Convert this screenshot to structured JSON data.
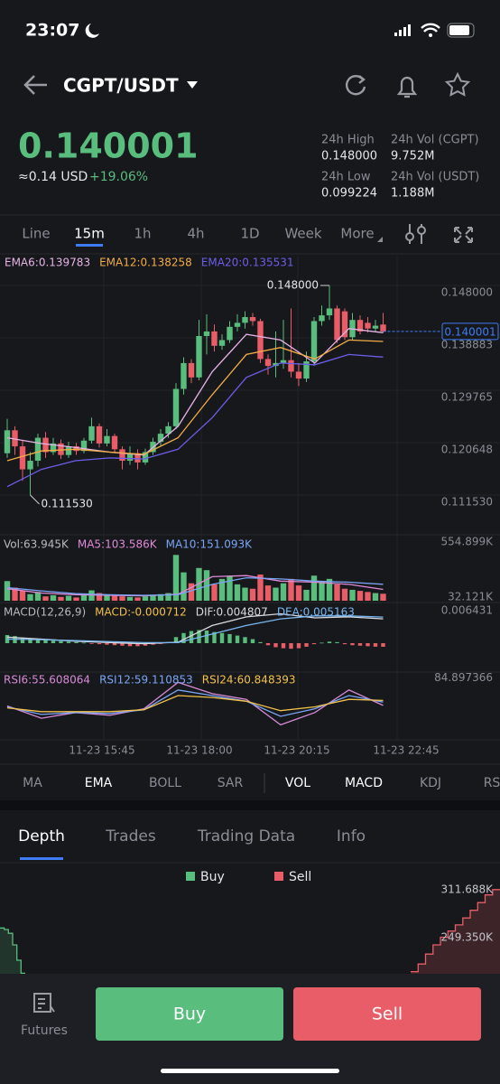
{
  "status_bar": {
    "time": "23:07"
  },
  "header": {
    "pair": "CGPT/USDT"
  },
  "ticker": {
    "last": "0.140001",
    "usd": "≈0.14 USD",
    "change": "+19.06%",
    "stats": [
      {
        "label": "24h High",
        "value": "0.148000"
      },
      {
        "label": "24h Vol (CGPT)",
        "value": "9.752M"
      },
      {
        "label": "24h Low",
        "value": "0.099224"
      },
      {
        "label": "24h Vol (USDT)",
        "value": "1.188M"
      }
    ]
  },
  "timeframes": {
    "items": [
      "Line",
      "15m",
      "1h",
      "4h",
      "1D",
      "Week",
      "More"
    ],
    "active": 1
  },
  "chart_data": [
    {
      "type": "candlestick",
      "up_color": "#58bd7d",
      "down_color": "#e85d68",
      "ylim": [
        0.10493,
        0.15319
      ],
      "yticks": [
        {
          "value": 0.148,
          "label": "0.148000"
        },
        0.138883,
        0.129765,
        0.120648,
        {
          "value": 0.11153,
          "label": "0.111530"
        }
      ],
      "last_price": {
        "value": 0.140001,
        "label": "0.140001"
      },
      "max_label": "0.148000",
      "min_label": "0.111530",
      "candles": [
        [
          0.1188,
          0.1248,
          0.118,
          0.1228
        ],
        [
          0.1228,
          0.1235,
          0.1185,
          0.12
        ],
        [
          0.12,
          0.121,
          0.114,
          0.116
        ],
        [
          0.116,
          0.119,
          0.11153,
          0.1175
        ],
        [
          0.1175,
          0.1222,
          0.1165,
          0.1215
        ],
        [
          0.1215,
          0.1225,
          0.118,
          0.119
        ],
        [
          0.119,
          0.1215,
          0.1185,
          0.1205
        ],
        [
          0.1205,
          0.1212,
          0.1178,
          0.1185
        ],
        [
          0.1185,
          0.1208,
          0.118,
          0.12
        ],
        [
          0.12,
          0.1206,
          0.1185,
          0.1192
        ],
        [
          0.1192,
          0.1215,
          0.1188,
          0.121
        ],
        [
          0.121,
          0.125,
          0.1205,
          0.1235
        ],
        [
          0.1235,
          0.124,
          0.1198,
          0.1205
        ],
        [
          0.1205,
          0.123,
          0.12,
          0.1218
        ],
        [
          0.1218,
          0.1222,
          0.1188,
          0.1195
        ],
        [
          0.1195,
          0.12,
          0.116,
          0.1175
        ],
        [
          0.1175,
          0.12,
          0.1168,
          0.1188
        ],
        [
          0.1188,
          0.1195,
          0.116,
          0.1172
        ],
        [
          0.1172,
          0.1196,
          0.1168,
          0.119
        ],
        [
          0.119,
          0.1215,
          0.1185,
          0.1208
        ],
        [
          0.1208,
          0.123,
          0.12,
          0.1222
        ],
        [
          0.1222,
          0.1242,
          0.1215,
          0.1235
        ],
        [
          0.1235,
          0.131,
          0.123,
          0.13
        ],
        [
          0.13,
          0.1355,
          0.129,
          0.1345
        ],
        [
          0.1345,
          0.1352,
          0.131,
          0.132
        ],
        [
          0.132,
          0.142,
          0.1315,
          0.1392
        ],
        [
          0.1392,
          0.143,
          0.136,
          0.14
        ],
        [
          0.14,
          0.1412,
          0.1365,
          0.1375
        ],
        [
          0.1375,
          0.1395,
          0.1368,
          0.1385
        ],
        [
          0.1385,
          0.1418,
          0.138,
          0.1408
        ],
        [
          0.1408,
          0.143,
          0.14,
          0.1415
        ],
        [
          0.1415,
          0.1435,
          0.1405,
          0.1425
        ],
        [
          0.1425,
          0.1432,
          0.141,
          0.1418
        ],
        [
          0.1418,
          0.1422,
          0.1345,
          0.1352
        ],
        [
          0.1352,
          0.136,
          0.1325,
          0.134
        ],
        [
          0.134,
          0.14,
          0.132,
          0.1345
        ],
        [
          0.1345,
          0.142,
          0.1335,
          0.135
        ],
        [
          0.135,
          0.144,
          0.132,
          0.133
        ],
        [
          0.133,
          0.1345,
          0.1305,
          0.1318
        ],
        [
          0.1318,
          0.1365,
          0.1312,
          0.1348
        ],
        [
          0.1348,
          0.1425,
          0.134,
          0.1418
        ],
        [
          0.1418,
          0.1445,
          0.141,
          0.1428
        ],
        [
          0.1428,
          0.148,
          0.142,
          0.144
        ],
        [
          0.144,
          0.1445,
          0.138,
          0.1385
        ],
        [
          0.1435,
          0.144,
          0.1385,
          0.139
        ],
        [
          0.139,
          0.1432,
          0.1385,
          0.142
        ],
        [
          0.142,
          0.1428,
          0.1395,
          0.14
        ],
        [
          0.1415,
          0.1425,
          0.1398,
          0.1405
        ],
        [
          0.1405,
          0.142,
          0.14,
          0.141
        ],
        [
          0.1412,
          0.1432,
          0.1398,
          0.140001
        ]
      ],
      "series": [
        {
          "name": "EMA6:0.139783",
          "color": "#e7b3e6",
          "values": [
            0.1215,
            0.1205,
            0.1198,
            0.119,
            0.1185,
            0.1235,
            0.133,
            0.1395,
            0.1385,
            0.1345,
            0.1405,
            0.139783
          ]
        },
        {
          "name": "EMA12:0.138258",
          "color": "#f2ad47",
          "values": [
            0.1175,
            0.1192,
            0.1195,
            0.119,
            0.1186,
            0.1215,
            0.129,
            0.136,
            0.1372,
            0.1352,
            0.1385,
            0.138258
          ]
        },
        {
          "name": "EMA20:0.135531",
          "color": "#6b5ee8",
          "values": [
            0.113,
            0.116,
            0.1175,
            0.118,
            0.1178,
            0.1195,
            0.125,
            0.132,
            0.1345,
            0.1342,
            0.136,
            0.135531
          ]
        }
      ]
    },
    {
      "type": "volume",
      "title": "Vol:63.945K",
      "ylim": [
        0,
        554.899
      ],
      "yticks": [
        {
          "value": 554.899,
          "label": "554.899K"
        },
        {
          "value": 32.121,
          "label": "32.121K"
        }
      ],
      "values": [
        180,
        120,
        90,
        60,
        80,
        40,
        50,
        35,
        45,
        30,
        55,
        95,
        70,
        50,
        45,
        40,
        35,
        30,
        40,
        55,
        60,
        70,
        420,
        260,
        160,
        300,
        280,
        150,
        200,
        230,
        150,
        120,
        110,
        240,
        140,
        120,
        160,
        200,
        140,
        100,
        230,
        180,
        200,
        150,
        110,
        100,
        90,
        80,
        70,
        63.945
      ],
      "series": [
        {
          "name": "MA5:103.586K",
          "color": "#e08ad8",
          "values": [
            110,
            70,
            55,
            50,
            45,
            60,
            220,
            230,
            180,
            170,
            150,
            103.586
          ]
        },
        {
          "name": "MA10:151.093K",
          "color": "#7aa5f5",
          "values": [
            120,
            90,
            65,
            55,
            50,
            55,
            150,
            210,
            200,
            180,
            170,
            151.093
          ]
        }
      ]
    },
    {
      "type": "macd",
      "title": "MACD(12,26,9)",
      "value_title": "MACD:-0.000712",
      "ylim": [
        -0.00536,
        0.0075
      ],
      "yticks": [
        0.006431
      ],
      "values": [
        0.0016,
        0.0014,
        0.0011,
        0.0009,
        0.0008,
        0.0006,
        0.0005,
        0.0004,
        0.0003,
        0.0002,
        0.0001,
        -0.0001,
        -0.0002,
        -0.0003,
        -0.0004,
        -0.0005,
        -0.0006,
        -0.0006,
        -0.0005,
        -0.0003,
        -0.0001,
        0.0002,
        0.0012,
        0.002,
        0.0024,
        0.0026,
        0.0025,
        0.0022,
        0.002,
        0.0018,
        0.0015,
        0.0012,
        0.0008,
        0.0002,
        -0.0004,
        -0.0008,
        -0.001,
        -0.0011,
        -0.001,
        -0.0007,
        -0.0002,
        0.0001,
        0.0003,
        0.0002,
        -0.0002,
        -0.0004,
        -0.0005,
        -0.0006,
        -0.0007,
        -0.000712
      ],
      "series": [
        {
          "name": "DIF:0.004807",
          "color": "#d9d9e0",
          "values": [
            0.0012,
            0.0008,
            0.0004,
            0.0001,
            -0.0001,
            0.0002,
            0.0035,
            0.0052,
            0.0058,
            0.005,
            0.0052,
            0.004807
          ]
        },
        {
          "name": "DEA:0.005163",
          "color": "#79b7f0",
          "values": [
            0.0008,
            0.0007,
            0.0005,
            0.0003,
            0.0001,
            0.0001,
            0.0018,
            0.0035,
            0.0048,
            0.0054,
            0.0054,
            0.005163
          ]
        }
      ]
    },
    {
      "type": "rsi",
      "ylim": [
        20,
        90
      ],
      "yticks": [
        84.897366
      ],
      "series": [
        {
          "name": "RSI6:55.608064",
          "color": "#d78ad8",
          "values": [
            55,
            42,
            48,
            45,
            52,
            80,
            68,
            62,
            35,
            48,
            72,
            55.608064
          ]
        },
        {
          "name": "RSI12:59.110853",
          "color": "#7aa5f5",
          "values": [
            54,
            46,
            48,
            47,
            51,
            72,
            66,
            60,
            44,
            52,
            66,
            59.110853
          ]
        },
        {
          "name": "RSI24:60.848393",
          "color": "#f2c14a",
          "values": [
            53,
            49,
            49,
            49,
            51,
            66,
            64,
            60,
            50,
            54,
            62,
            60.848393
          ]
        }
      ]
    },
    {
      "type": "depth",
      "ylim": [
        202.3,
        347
      ],
      "yticks": [
        {
          "value": 311.688,
          "label": "311.688K"
        },
        {
          "value": 249.35,
          "label": "249.350K"
        }
      ],
      "series": [
        {
          "name": "Buy",
          "color": "#58bd7d",
          "values": [
            262,
            260,
            255,
            240,
            220,
            203
          ]
        },
        {
          "name": "Sell",
          "color": "#e85d68",
          "values": [
            205,
            215,
            228,
            240,
            250,
            258,
            266,
            275,
            285,
            295,
            305,
            312
          ]
        }
      ]
    }
  ],
  "time_labels": [
    "11-23 15:45",
    "11-23 18:00",
    "11-23 20:15",
    "11-23 22:45"
  ],
  "indicators": {
    "main": [
      "MA",
      "EMA",
      "BOLL",
      "SAR"
    ],
    "sub": [
      "VOL",
      "MACD",
      "KDJ",
      "RS"
    ],
    "active": [
      "EMA",
      "VOL",
      "MACD"
    ]
  },
  "tabs": {
    "items": [
      "Depth",
      "Trades",
      "Trading Data",
      "Info"
    ],
    "active": 0
  },
  "footer": {
    "futures": "Futures",
    "buy": "Buy",
    "sell": "Sell"
  }
}
